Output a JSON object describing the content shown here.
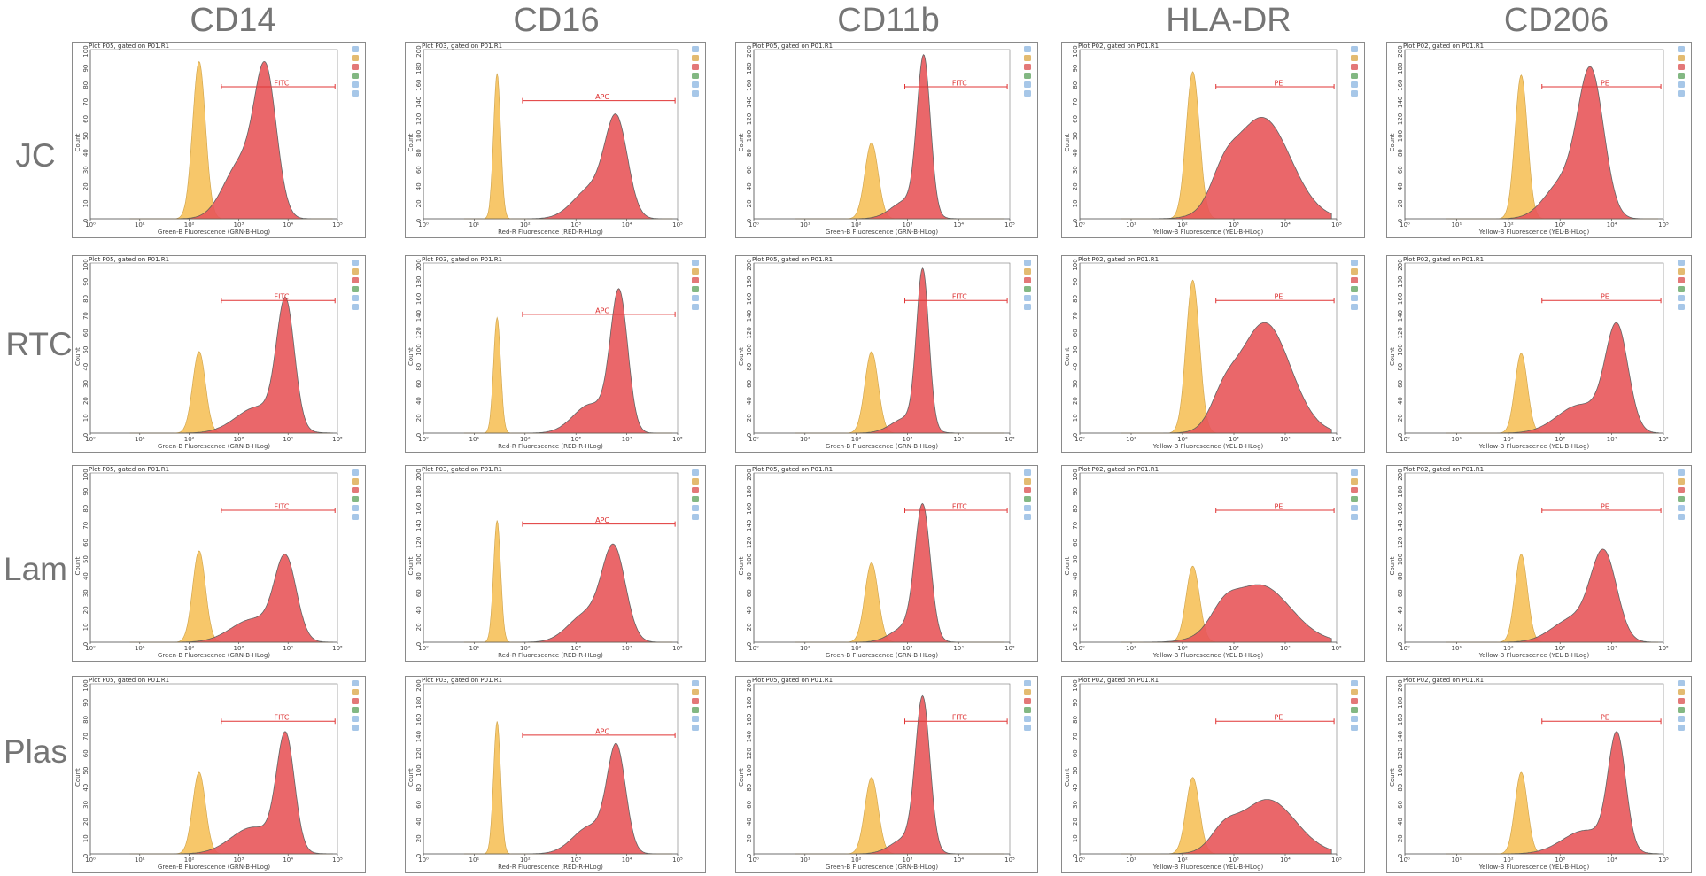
{
  "columns": [
    "CD14",
    "CD16",
    "CD11b",
    "HLA-DR",
    "CD206"
  ],
  "rows": [
    "JC",
    "RTC",
    "Lam",
    "Plas"
  ],
  "colors": {
    "control": "#f7c35e",
    "control_stroke": "#c99a3a",
    "stain": "#e8575a",
    "stain_stroke": "#555555",
    "overlap": "#e8612e",
    "gate": "#e03535",
    "frame": "#8a8a8a"
  },
  "chart_data": {
    "type": "area",
    "x_scale": "log",
    "xlim": [
      1,
      100000
    ],
    "x_tick_labels": [
      "10⁰",
      "10¹",
      "10²",
      "10³",
      "10⁴",
      "10⁵"
    ],
    "y_label": "Count",
    "markers": {
      "CD14": {
        "plot_title": "Plot P05, gated on P01.R1",
        "xlabel": "Green-B Fluorescence (GRN-B-HLog)",
        "gate_label": "FITC",
        "ylim": [
          0,
          100
        ],
        "y_ticks": [
          "0",
          "10",
          "20",
          "30",
          "40",
          "50",
          "60",
          "70",
          "80",
          "90",
          "100"
        ]
      },
      "CD16": {
        "plot_title": "Plot P03, gated on P01.R1",
        "xlabel": "Red-R Fluorescence (RED-R-HLog)",
        "gate_label": "APC",
        "ylim": [
          0,
          200
        ],
        "y_ticks": [
          "0",
          "20",
          "40",
          "60",
          "80",
          "100",
          "120",
          "140",
          "160",
          "180",
          "200"
        ]
      },
      "CD11b": {
        "plot_title": "Plot P05, gated on P01.R1",
        "xlabel": "Green-B Fluorescence (GRN-B-HLog)",
        "gate_label": "FITC",
        "ylim": [
          0,
          200
        ],
        "y_ticks": [
          "0",
          "20",
          "40",
          "60",
          "80",
          "100",
          "120",
          "140",
          "160",
          "180",
          "200"
        ]
      },
      "HLA-DR": {
        "plot_title": "Plot P02, gated on P01.R1",
        "xlabel": "Yellow-B Fluorescence (YEL-B-HLog)",
        "gate_label": "PE",
        "ylim": [
          0,
          100
        ],
        "y_ticks": [
          "0",
          "10",
          "20",
          "30",
          "40",
          "50",
          "60",
          "70",
          "80",
          "90",
          "100"
        ]
      },
      "CD206": {
        "plot_title": "Plot P02, gated on P01.R1",
        "xlabel": "Yellow-B Fluorescence (YEL-B-HLog)",
        "gate_label": "PE",
        "ylim": [
          0,
          200
        ],
        "y_ticks": [
          "0",
          "20",
          "40",
          "60",
          "80",
          "100",
          "120",
          "140",
          "160",
          "180",
          "200"
        ]
      }
    },
    "panels": [
      {
        "row": "JC",
        "marker": "CD14",
        "control": {
          "peak_log": 2.2,
          "height": 0.93,
          "width": 0.13
        },
        "stain": [
          {
            "mu": 3.55,
            "sd": 0.22,
            "a": 0.78
          },
          {
            "mu": 3.05,
            "sd": 0.35,
            "a": 0.32
          }
        ],
        "stain_peak": 0.93,
        "gate_log": [
          2.65,
          4.95
        ]
      },
      {
        "row": "JC",
        "marker": "CD16",
        "control": {
          "peak_log": 1.45,
          "height": 0.86,
          "width": 0.07
        },
        "stain": [
          {
            "mu": 3.8,
            "sd": 0.22,
            "a": 0.62
          },
          {
            "mu": 3.3,
            "sd": 0.35,
            "a": 0.2
          }
        ],
        "stain_peak": 0.62,
        "gate_log": [
          1.95,
          4.95
        ]
      },
      {
        "row": "JC",
        "marker": "CD11b",
        "control": {
          "peak_log": 2.3,
          "height": 0.45,
          "width": 0.13
        },
        "stain": [
          {
            "mu": 3.32,
            "sd": 0.13,
            "a": 1.0
          },
          {
            "mu": 3.0,
            "sd": 0.3,
            "a": 0.12
          }
        ],
        "stain_peak": 0.97,
        "gate_log": [
          2.95,
          4.95
        ]
      },
      {
        "row": "JC",
        "marker": "HLA-DR",
        "control": {
          "peak_log": 2.2,
          "height": 0.87,
          "width": 0.13
        },
        "stain": [
          {
            "mu": 3.55,
            "sd": 0.55,
            "a": 0.6
          },
          {
            "mu": 2.8,
            "sd": 0.25,
            "a": 0.15
          }
        ],
        "stain_peak": 0.6,
        "gate_log": [
          2.65,
          4.95
        ]
      },
      {
        "row": "JC",
        "marker": "CD206",
        "control": {
          "peak_log": 2.25,
          "height": 0.85,
          "width": 0.12
        },
        "stain": [
          {
            "mu": 3.6,
            "sd": 0.25,
            "a": 0.88
          },
          {
            "mu": 3.05,
            "sd": 0.35,
            "a": 0.22
          }
        ],
        "stain_peak": 0.9,
        "gate_log": [
          2.65,
          4.95
        ]
      },
      {
        "row": "RTC",
        "marker": "CD14",
        "control": {
          "peak_log": 2.2,
          "height": 0.48,
          "width": 0.13
        },
        "stain": [
          {
            "mu": 3.95,
            "sd": 0.18,
            "a": 0.8
          },
          {
            "mu": 3.4,
            "sd": 0.45,
            "a": 0.17
          }
        ],
        "stain_peak": 0.8,
        "gate_log": [
          2.65,
          4.95
        ]
      },
      {
        "row": "RTC",
        "marker": "CD16",
        "control": {
          "peak_log": 1.45,
          "height": 0.68,
          "width": 0.07
        },
        "stain": [
          {
            "mu": 3.85,
            "sd": 0.17,
            "a": 0.85
          },
          {
            "mu": 3.3,
            "sd": 0.35,
            "a": 0.18
          }
        ],
        "stain_peak": 0.85,
        "gate_log": [
          1.95,
          4.95
        ]
      },
      {
        "row": "RTC",
        "marker": "CD11b",
        "control": {
          "peak_log": 2.3,
          "height": 0.48,
          "width": 0.13
        },
        "stain": [
          {
            "mu": 3.3,
            "sd": 0.12,
            "a": 1.0
          },
          {
            "mu": 3.0,
            "sd": 0.3,
            "a": 0.1
          }
        ],
        "stain_peak": 0.97,
        "gate_log": [
          2.95,
          4.95
        ]
      },
      {
        "row": "RTC",
        "marker": "HLA-DR",
        "control": {
          "peak_log": 2.2,
          "height": 0.9,
          "width": 0.13
        },
        "stain": [
          {
            "mu": 3.6,
            "sd": 0.5,
            "a": 0.65
          },
          {
            "mu": 2.8,
            "sd": 0.25,
            "a": 0.15
          }
        ],
        "stain_peak": 0.65,
        "gate_log": [
          2.65,
          4.95
        ]
      },
      {
        "row": "RTC",
        "marker": "CD206",
        "control": {
          "peak_log": 2.25,
          "height": 0.47,
          "width": 0.12
        },
        "stain": [
          {
            "mu": 4.1,
            "sd": 0.22,
            "a": 0.65
          },
          {
            "mu": 3.4,
            "sd": 0.45,
            "a": 0.18
          }
        ],
        "stain_peak": 0.65,
        "gate_log": [
          2.65,
          4.95
        ]
      },
      {
        "row": "Lam",
        "marker": "CD14",
        "control": {
          "peak_log": 2.2,
          "height": 0.54,
          "width": 0.13
        },
        "stain": [
          {
            "mu": 3.95,
            "sd": 0.22,
            "a": 0.52
          },
          {
            "mu": 3.3,
            "sd": 0.45,
            "a": 0.15
          }
        ],
        "stain_peak": 0.52,
        "gate_log": [
          2.65,
          4.95
        ]
      },
      {
        "row": "Lam",
        "marker": "CD16",
        "control": {
          "peak_log": 1.45,
          "height": 0.72,
          "width": 0.07
        },
        "stain": [
          {
            "mu": 3.75,
            "sd": 0.23,
            "a": 0.58
          },
          {
            "mu": 3.2,
            "sd": 0.35,
            "a": 0.18
          }
        ],
        "stain_peak": 0.58,
        "gate_log": [
          1.95,
          4.95
        ]
      },
      {
        "row": "Lam",
        "marker": "CD11b",
        "control": {
          "peak_log": 2.3,
          "height": 0.47,
          "width": 0.13
        },
        "stain": [
          {
            "mu": 3.3,
            "sd": 0.15,
            "a": 0.82
          },
          {
            "mu": 3.0,
            "sd": 0.3,
            "a": 0.1
          }
        ],
        "stain_peak": 0.82,
        "gate_log": [
          2.95,
          4.95
        ]
      },
      {
        "row": "Lam",
        "marker": "HLA-DR",
        "control": {
          "peak_log": 2.2,
          "height": 0.45,
          "width": 0.13
        },
        "stain": [
          {
            "mu": 3.5,
            "sd": 0.6,
            "a": 0.34
          },
          {
            "mu": 2.8,
            "sd": 0.25,
            "a": 0.1
          }
        ],
        "stain_peak": 0.34,
        "gate_log": [
          2.65,
          4.95
        ]
      },
      {
        "row": "Lam",
        "marker": "CD206",
        "control": {
          "peak_log": 2.25,
          "height": 0.52,
          "width": 0.12
        },
        "stain": [
          {
            "mu": 3.85,
            "sd": 0.25,
            "a": 0.55
          },
          {
            "mu": 3.25,
            "sd": 0.4,
            "a": 0.15
          }
        ],
        "stain_peak": 0.55,
        "gate_log": [
          2.65,
          4.95
        ]
      },
      {
        "row": "Plas",
        "marker": "CD14",
        "control": {
          "peak_log": 2.2,
          "height": 0.48,
          "width": 0.13
        },
        "stain": [
          {
            "mu": 3.95,
            "sd": 0.18,
            "a": 0.72
          },
          {
            "mu": 3.3,
            "sd": 0.45,
            "a": 0.17
          }
        ],
        "stain_peak": 0.72,
        "gate_log": [
          2.65,
          4.95
        ]
      },
      {
        "row": "Plas",
        "marker": "CD16",
        "control": {
          "peak_log": 1.45,
          "height": 0.78,
          "width": 0.07
        },
        "stain": [
          {
            "mu": 3.8,
            "sd": 0.18,
            "a": 0.65
          },
          {
            "mu": 3.3,
            "sd": 0.35,
            "a": 0.18
          }
        ],
        "stain_peak": 0.65,
        "gate_log": [
          1.95,
          4.95
        ]
      },
      {
        "row": "Plas",
        "marker": "CD11b",
        "control": {
          "peak_log": 2.3,
          "height": 0.45,
          "width": 0.13
        },
        "stain": [
          {
            "mu": 3.3,
            "sd": 0.14,
            "a": 0.93
          },
          {
            "mu": 3.0,
            "sd": 0.3,
            "a": 0.1
          }
        ],
        "stain_peak": 0.93,
        "gate_log": [
          2.95,
          4.95
        ]
      },
      {
        "row": "Plas",
        "marker": "HLA-DR",
        "control": {
          "peak_log": 2.2,
          "height": 0.45,
          "width": 0.13
        },
        "stain": [
          {
            "mu": 3.65,
            "sd": 0.55,
            "a": 0.32
          },
          {
            "mu": 2.8,
            "sd": 0.25,
            "a": 0.1
          }
        ],
        "stain_peak": 0.32,
        "gate_log": [
          2.65,
          4.95
        ]
      },
      {
        "row": "Plas",
        "marker": "CD206",
        "control": {
          "peak_log": 2.25,
          "height": 0.48,
          "width": 0.12
        },
        "stain": [
          {
            "mu": 4.1,
            "sd": 0.17,
            "a": 0.72
          },
          {
            "mu": 3.5,
            "sd": 0.45,
            "a": 0.15
          }
        ],
        "stain_peak": 0.72,
        "gate_log": [
          2.65,
          4.95
        ]
      }
    ]
  }
}
